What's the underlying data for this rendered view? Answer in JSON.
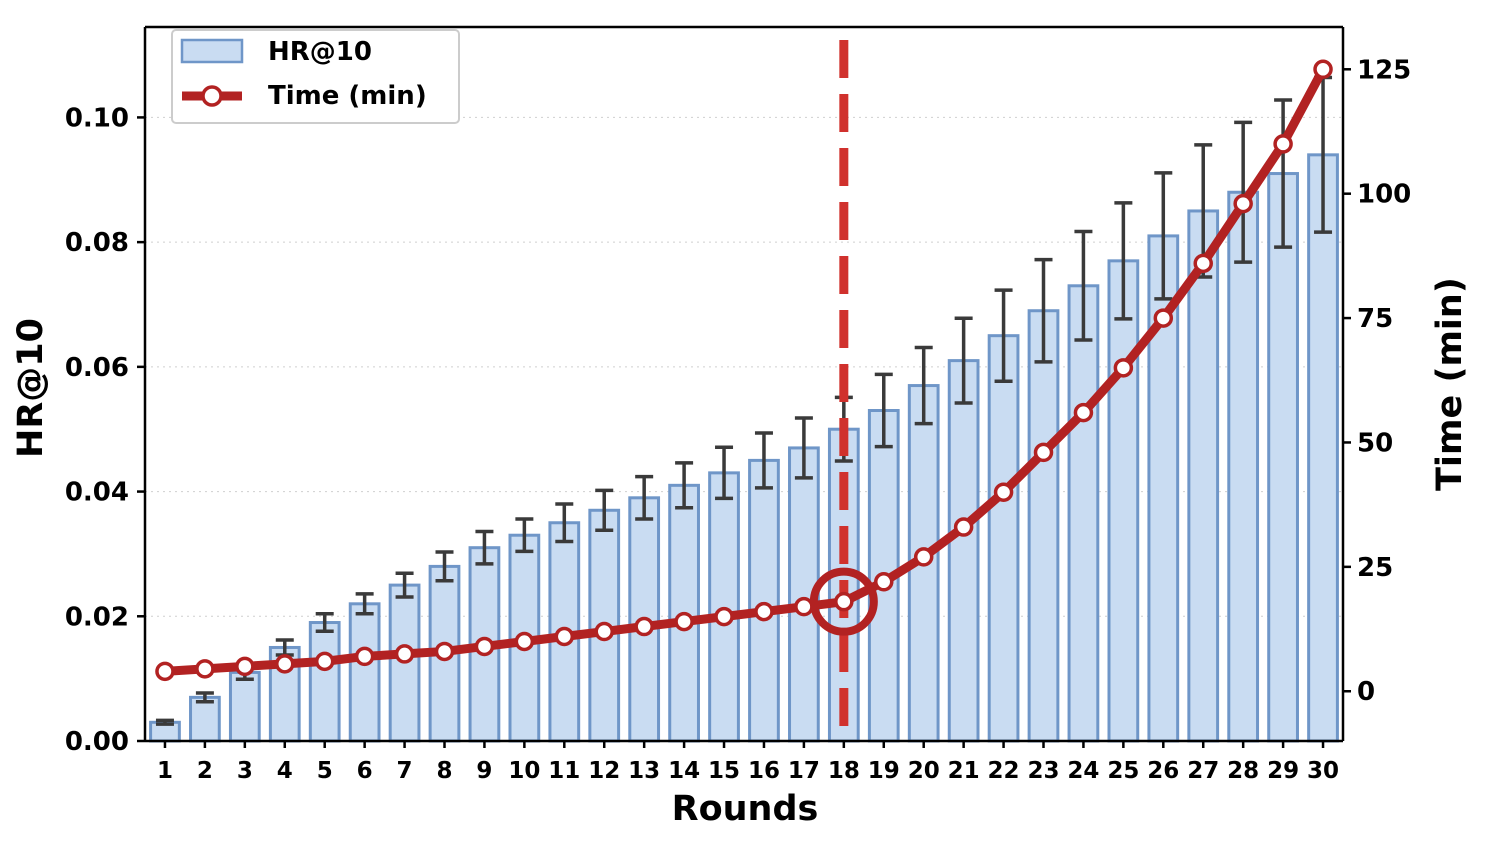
{
  "chart_data": {
    "type": "bar",
    "xlabel": "Rounds",
    "ylabel": "HR@10",
    "y2label": "Time (min)",
    "categories": [
      "1",
      "2",
      "3",
      "4",
      "5",
      "6",
      "7",
      "8",
      "9",
      "10",
      "11",
      "12",
      "13",
      "14",
      "15",
      "16",
      "17",
      "18",
      "19",
      "20",
      "21",
      "22",
      "23",
      "24",
      "25",
      "26",
      "27",
      "28",
      "29",
      "30"
    ],
    "ylim": [
      0,
      0.1145
    ],
    "y2lim": [
      -10,
      133.5
    ],
    "yticks": [
      0.0,
      0.02,
      0.04,
      0.06,
      0.08,
      0.1
    ],
    "ytick_labels": [
      "0.00",
      "0.02",
      "0.04",
      "0.06",
      "0.08",
      "0.10"
    ],
    "y2ticks": [
      0,
      25,
      50,
      75,
      100,
      125
    ],
    "y2tick_labels": [
      "0",
      "25",
      "50",
      "75",
      "100",
      "125"
    ],
    "grid": "horizontal dotted",
    "legend_position": "top-left",
    "series": [
      {
        "name": "HR@10",
        "type": "bar",
        "axis": "left",
        "color": "#c9dcf2",
        "edge_color": "#6f96c8",
        "values": [
          0.003,
          0.007,
          0.011,
          0.015,
          0.019,
          0.022,
          0.025,
          0.028,
          0.031,
          0.033,
          0.035,
          0.037,
          0.039,
          0.041,
          0.043,
          0.045,
          0.047,
          0.05,
          0.053,
          0.057,
          0.061,
          0.065,
          0.069,
          0.073,
          0.077,
          0.081,
          0.085,
          0.088,
          0.091,
          0.094
        ],
        "error": [
          0.0003,
          0.0007,
          0.0011,
          0.0012,
          0.0014,
          0.0016,
          0.0019,
          0.0023,
          0.0026,
          0.0026,
          0.003,
          0.0032,
          0.0034,
          0.0036,
          0.0041,
          0.0044,
          0.0048,
          0.0051,
          0.0058,
          0.0061,
          0.0068,
          0.0073,
          0.0082,
          0.0087,
          0.0093,
          0.0101,
          0.0106,
          0.0112,
          0.0118,
          0.0124
        ]
      },
      {
        "name": "Time (min)",
        "type": "line",
        "axis": "right",
        "color": "#b22222",
        "values": [
          4,
          4.5,
          5,
          5.5,
          6,
          7,
          7.5,
          8,
          9,
          10,
          11,
          12,
          13,
          14,
          15,
          16,
          17,
          18,
          22,
          27,
          33,
          40,
          48,
          56,
          65,
          75,
          86,
          98,
          110,
          125
        ]
      }
    ],
    "annotations": {
      "vertical_dashed_line_at": "18",
      "circle_marker_at": "18",
      "color": "#d0312d"
    }
  }
}
